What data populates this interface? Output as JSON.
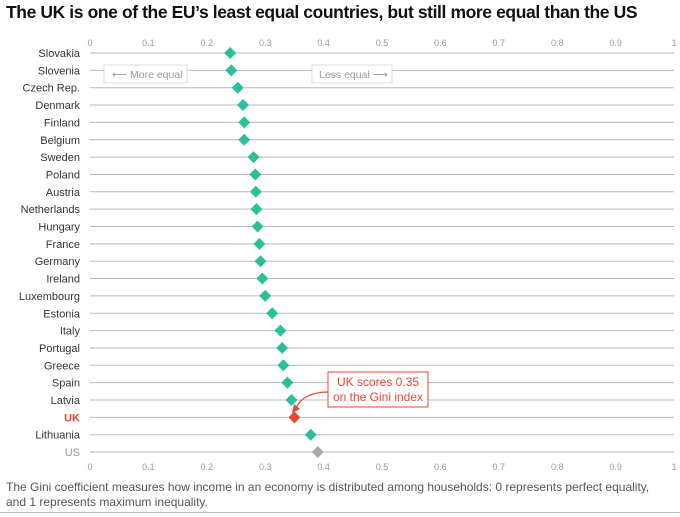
{
  "title": "The UK is one of the EU’s least equal countries, but still more equal than the US",
  "caption": "The Gini coefficient measures how income in an economy is distributed among households: 0 represents perfect equality, and 1 represents maximum inequality.",
  "colors": {
    "default": "#2bbf9a",
    "highlight": "#e8462f",
    "muted": "#a8a8a8"
  },
  "chart_data": {
    "type": "scatter",
    "xlim": [
      0,
      1
    ],
    "xticks": [
      "0",
      "0.1",
      "0.2",
      "0.3",
      "0.4",
      "0.5",
      "0.6",
      "0.7",
      "0.8",
      "0.9",
      "1"
    ],
    "grid": true,
    "legend": "none",
    "categories": [
      "Slovakia",
      "Slovenia",
      "Czech Rep.",
      "Denmark",
      "Finland",
      "Belgium",
      "Sweden",
      "Poland",
      "Austria",
      "Netherlands",
      "Hungary",
      "France",
      "Germany",
      "Ireland",
      "Luxembourg",
      "Estonia",
      "Italy",
      "Portugal",
      "Greece",
      "Spain",
      "Latvia",
      "UK",
      "Lithuania",
      "US"
    ],
    "values": [
      0.24,
      0.242,
      0.253,
      0.262,
      0.264,
      0.264,
      0.28,
      0.283,
      0.284,
      0.285,
      0.287,
      0.29,
      0.292,
      0.295,
      0.3,
      0.312,
      0.326,
      0.329,
      0.331,
      0.338,
      0.345,
      0.35,
      0.378,
      0.39
    ],
    "highlight": "UK",
    "muted": "US",
    "annotations": {
      "more_equal": "More equal",
      "less_equal": "Less equal",
      "callout_line1": "UK scores 0.35",
      "callout_line2": "on the Gini index"
    }
  }
}
